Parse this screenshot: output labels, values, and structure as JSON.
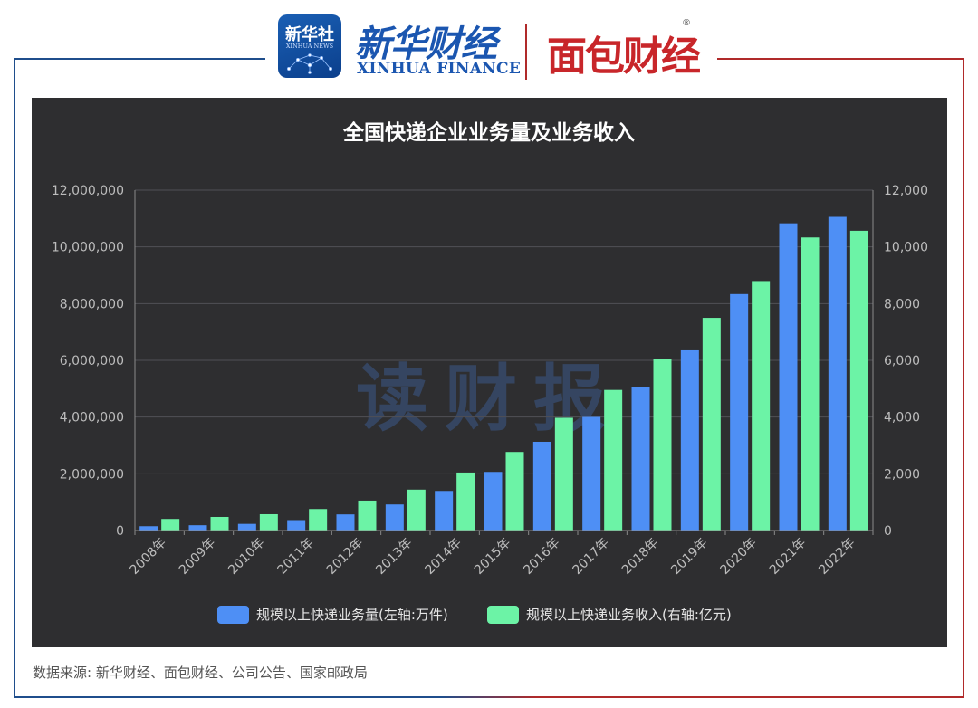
{
  "header": {
    "xinhua_badge_cn": "新华社",
    "xinhua_badge_en": "XINHUA NEWS",
    "xinhua_finance_cn": "新华财经",
    "xinhua_finance_en": "XINHUA FINANCE",
    "mianbao_logo": "面包财经",
    "registered_mark": "®"
  },
  "colors": {
    "frame_blue": "#1f4e8c",
    "frame_red": "#b02a2a",
    "panel_bg": "#2e2e30",
    "volume_bar": "#4e8ff5",
    "revenue_bar": "#6cf3a6"
  },
  "watermark": "读财报",
  "chart_data": {
    "type": "bar",
    "title": "全国快递企业业务量及业务收入",
    "categories": [
      "2008年",
      "2009年",
      "2010年",
      "2011年",
      "2012年",
      "2013年",
      "2014年",
      "2015年",
      "2016年",
      "2017年",
      "2018年",
      "2019年",
      "2020年",
      "2021年",
      "2022年"
    ],
    "series": [
      {
        "name": "规模以上快递业务量(左轴:万件)",
        "axis": "left",
        "values": [
          151329,
          185786,
          233892,
          367311,
          568548,
          918675,
          1395925,
          2066637,
          3128315,
          4005592,
          5071043,
          6352291,
          8335789,
          10830000,
          11058000
        ]
      },
      {
        "name": "规模以上快递业务收入(右轴:亿元)",
        "axis": "right",
        "values": [
          408,
          479,
          575,
          758,
          1055,
          1442,
          2045,
          2770,
          3974,
          4957,
          6038,
          7498,
          8795,
          10332,
          10567
        ]
      }
    ],
    "left_axis": {
      "ylim": [
        0,
        12000000
      ],
      "ticks": [
        0,
        2000000,
        4000000,
        6000000,
        8000000,
        10000000,
        12000000
      ],
      "tick_labels": [
        "0",
        "2,000,000",
        "4,000,000",
        "6,000,000",
        "8,000,000",
        "10,000,000",
        "12,000,000"
      ]
    },
    "right_axis": {
      "ylim": [
        0,
        12000
      ],
      "ticks": [
        0,
        2000,
        4000,
        6000,
        8000,
        10000,
        12000
      ],
      "tick_labels": [
        "0",
        "2,000",
        "4,000",
        "6,000",
        "8,000",
        "10,000",
        "12,000"
      ]
    },
    "legend_position": "bottom-center",
    "grid": true
  },
  "source_note": "数据来源: 新华财经、面包财经、公司公告、国家邮政局"
}
